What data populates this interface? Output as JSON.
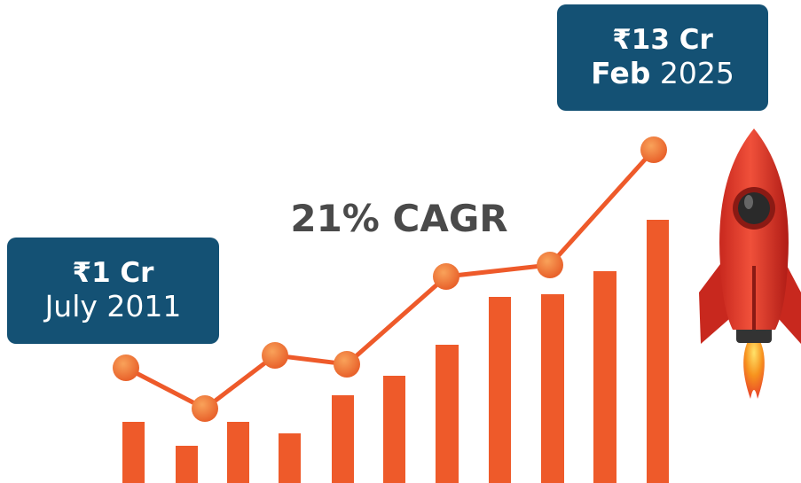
{
  "start": {
    "amount": "₹1 Cr",
    "date": "July 2011"
  },
  "end": {
    "amount": "₹13 Cr",
    "month": "Feb",
    "year": "2025"
  },
  "growth": "21% CAGR"
}
